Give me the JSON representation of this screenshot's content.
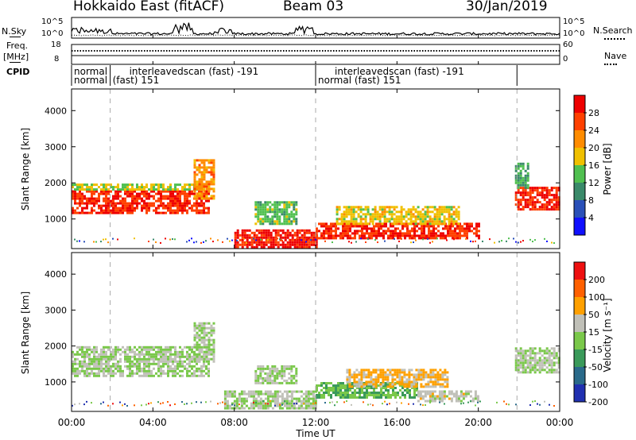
{
  "header": {
    "title": "Hokkaido East (fitACF)",
    "beam": "Beam 03",
    "date": "30/Jan/2019"
  },
  "left_labels": {
    "nsky": "N.Sky",
    "freq_line1": "Freq.",
    "freq_line2": "[MHz]",
    "cpid": "CPID"
  },
  "right_labels": {
    "nsearch": "N.Search",
    "nave": "Nave"
  },
  "noise_panel": {
    "left_ticks": [
      "10^5",
      "10^0"
    ],
    "right_ticks": [
      "10^5",
      "10^0"
    ]
  },
  "freq_panel": {
    "left_ticks": [
      "18",
      "8"
    ],
    "right_ticks": [
      "60",
      "0"
    ]
  },
  "cpid_panel": {
    "segments": [
      {
        "start": 0.0,
        "end": 1.9,
        "line1": "normal",
        "line2": ""
      },
      {
        "start": 1.9,
        "end": 12.0,
        "line1": "interleavedscan (fast) -191",
        "line2": "(fast) 151"
      },
      {
        "start": 12.0,
        "end": 21.9,
        "line1": "interleavedscan (fast) -191",
        "line2": "normal (fast) 151"
      },
      {
        "start": 21.9,
        "end": 24.0,
        "line1": "",
        "line2": ""
      }
    ]
  },
  "power_panel": {
    "ylabel": "Slant Range [km]",
    "yticks": [
      "4000",
      "3000",
      "2000",
      "1000"
    ],
    "colorbar_label": "Power [dB]",
    "colorbar_ticks": [
      "28",
      "24",
      "20",
      "16",
      "12",
      "8",
      "4"
    ],
    "colors": [
      "#1010ff",
      "#2a50b8",
      "#3a8a6a",
      "#50c050",
      "#f0c000",
      "#ff8c00",
      "#ff4000",
      "#ee0000"
    ]
  },
  "velocity_panel": {
    "ylabel": "Slant Range [km]",
    "yticks": [
      "4000",
      "3000",
      "2000",
      "1000"
    ],
    "colorbar_label": "Velocity [m s⁻¹]",
    "colorbar_ticks": [
      "200",
      "100",
      "50",
      "15",
      "-15",
      "-50",
      "-100",
      "-200"
    ],
    "colors": [
      "#2030b0",
      "#2a6a8a",
      "#3a9a5a",
      "#7ac84a",
      "#c0c0b8",
      "#ffa000",
      "#ff6000",
      "#ee1010"
    ]
  },
  "xaxis": {
    "label": "Time UT",
    "ticks": [
      "00:00",
      "04:00",
      "08:00",
      "12:00",
      "16:00",
      "20:00",
      "00:00"
    ]
  },
  "chart_data": {
    "type": "heatmap",
    "title": "Hokkaido East (fitACF)",
    "subtitle": "Beam 03",
    "date": "30/Jan/2019",
    "xlabel": "Time UT",
    "xlim": [
      0,
      24
    ],
    "ylabel": "Slant Range [km]",
    "ylim": [
      180,
      4600
    ],
    "panels": [
      {
        "name": "Power",
        "unit": "dB",
        "colorscale_range": [
          0,
          32
        ],
        "regions": [
          {
            "t0": 0.0,
            "t1": 6.8,
            "r0": 1200,
            "r1": 1850,
            "value": 28
          },
          {
            "t0": 0.0,
            "t1": 6.5,
            "r0": 1850,
            "r1": 2000,
            "value": 16
          },
          {
            "t0": 6.0,
            "t1": 7.0,
            "r0": 1600,
            "r1": 2700,
            "value": 22
          },
          {
            "t0": 8.0,
            "t1": 12.0,
            "r0": 250,
            "r1": 750,
            "value": 29
          },
          {
            "t0": 9.0,
            "t1": 11.0,
            "r0": 900,
            "r1": 1500,
            "value": 14
          },
          {
            "t0": 12.0,
            "t1": 20.0,
            "r0": 500,
            "r1": 900,
            "value": 28
          },
          {
            "t0": 13.0,
            "t1": 19.0,
            "r0": 900,
            "r1": 1400,
            "value": 18
          },
          {
            "t0": 21.8,
            "t1": 24.0,
            "r0": 1300,
            "r1": 1900,
            "value": 28
          },
          {
            "t0": 21.8,
            "t1": 22.5,
            "r0": 1900,
            "r1": 2600,
            "value": 12
          }
        ]
      },
      {
        "name": "Velocity",
        "unit": "m s⁻¹",
        "colorscale_range": [
          -250,
          250
        ],
        "regions": [
          {
            "t0": 0.0,
            "t1": 6.8,
            "r0": 1200,
            "r1": 2000,
            "value": 0
          },
          {
            "t0": 6.0,
            "t1": 7.0,
            "r0": 1600,
            "r1": 2700,
            "value": 0
          },
          {
            "t0": 7.5,
            "t1": 12.0,
            "r0": 300,
            "r1": 800,
            "value": 0
          },
          {
            "t0": 9.0,
            "t1": 11.0,
            "r0": 1000,
            "r1": 1500,
            "value": 0
          },
          {
            "t0": 12.0,
            "t1": 17.0,
            "r0": 600,
            "r1": 1000,
            "value": -60
          },
          {
            "t0": 13.5,
            "t1": 18.5,
            "r0": 900,
            "r1": 1400,
            "value": 80
          },
          {
            "t0": 17.0,
            "t1": 20.0,
            "r0": 500,
            "r1": 800,
            "value": 30
          },
          {
            "t0": 21.8,
            "t1": 24.0,
            "r0": 1300,
            "r1": 2000,
            "value": 0
          }
        ]
      }
    ],
    "noise": {
      "series": [
        "N.Sky",
        "N.Search"
      ]
    },
    "frequency": {
      "series": [
        "Freq. [MHz]",
        "Nave"
      ]
    }
  }
}
